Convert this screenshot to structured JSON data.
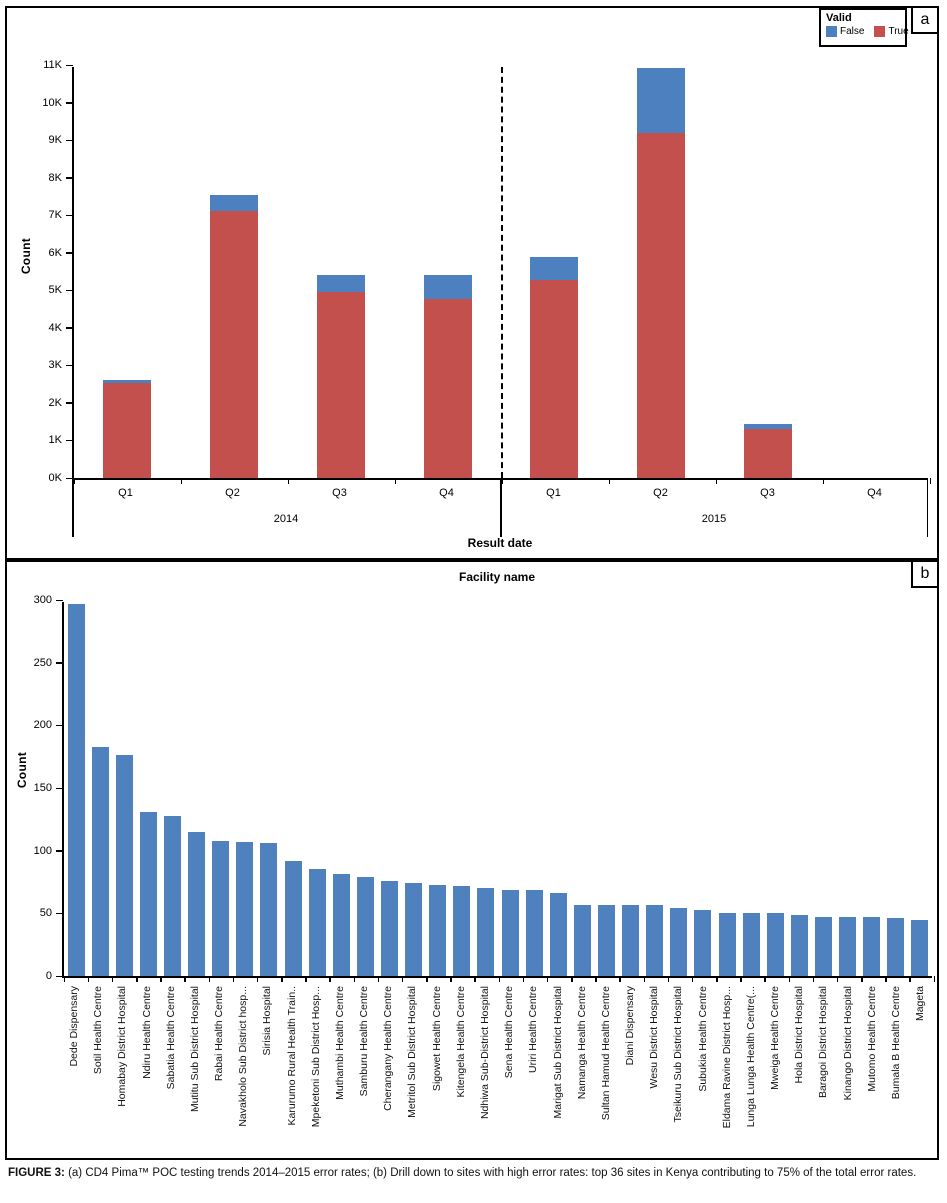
{
  "figure": {
    "caption_prefix": "FIGURE 3:",
    "caption_text": " (a) CD4 Pima™ POC testing trends 2014–2015 error rates; (b) Drill down to sites with high error rates: top 36 sites in Kenya contributing to 75% of the total error rates."
  },
  "panel_a": {
    "panel_letter": "a",
    "ylabel": "Count",
    "xlabel": "Result date",
    "legend": {
      "title": "Valid",
      "items": [
        {
          "label": "False",
          "color": "#4d80bf"
        },
        {
          "label": "True",
          "color": "#c4504e"
        }
      ]
    }
  },
  "panel_b": {
    "panel_letter": "b",
    "title": "Facility name",
    "ylabel": "Count"
  },
  "chart_data": [
    {
      "type": "bar",
      "stacked": true,
      "panel": "a",
      "xlabel": "Result date",
      "ylabel": "Count",
      "ylim": [
        0,
        11000
      ],
      "ytick_step": 1000,
      "ytick_suffix": "K",
      "grid": false,
      "legend_title": "Valid",
      "legend_position": "top-right",
      "group_labels": [
        "2014",
        "2015"
      ],
      "categories": [
        "Q1",
        "Q2",
        "Q3",
        "Q4",
        "Q1",
        "Q2",
        "Q3",
        "Q4"
      ],
      "series": [
        {
          "name": "True",
          "color": "#c4504e",
          "values": [
            2520,
            7100,
            4950,
            4780,
            5280,
            9200,
            1300,
            0
          ]
        },
        {
          "name": "False",
          "color": "#4d80bf",
          "values": [
            100,
            450,
            450,
            620,
            620,
            1730,
            130,
            0
          ]
        }
      ]
    },
    {
      "type": "bar",
      "panel": "b",
      "title": "Facility name",
      "ylabel": "Count",
      "ylim": [
        0,
        300
      ],
      "ytick_step": 50,
      "grid": false,
      "bar_color": "#4e81bd",
      "categories": [
        "Dede Dispensary",
        "Sotil Health Centre",
        "Homabay District Hospital",
        "Ndiru Health Centre",
        "Sabatia Health Centre",
        "Mutitu Sub District Hospital",
        "Rabai Health Centre",
        "Navakholo Sub District hosp...",
        "Sirisia Hospital",
        "Karurumo Rural Health Train..",
        "Mpeketoni Sub District Hosp...",
        "Muthambi Health Centre",
        "Samburu Health Centre",
        "Cherangany Health Centre",
        "Metritol Sub District Hospital",
        "Sigowet Health Centre",
        "Kitengela Health Centre",
        "Ndhiwa Sub-District Hospital",
        "Sena Health Centre",
        "Uriri Health Centre",
        "Marigat Sub District Hospital",
        "Namanga Health Centre",
        "Sultan Hamud Health Centre",
        "Diani Dispensary",
        "Wesu District Hospital",
        "Tseikuru Sub District Hospital",
        "Subukia Health Centre",
        "Eldama Ravine District Hosp...",
        "Lunga Lunga Health Centre(...",
        "Mweiga Health Centre",
        "Hola District Hospital",
        "Baragoi District Hospital",
        "Kinango District Hospital",
        "Mutomo Health Centre",
        "Bumala B Health Centre",
        "Mageta"
      ],
      "values": [
        297,
        183,
        176,
        131,
        128,
        115,
        108,
        107,
        106,
        92,
        85,
        81,
        79,
        76,
        74,
        73,
        72,
        70,
        69,
        69,
        66,
        57,
        57,
        57,
        57,
        54,
        53,
        50,
        50,
        50,
        49,
        47,
        47,
        47,
        46,
        45
      ]
    }
  ]
}
